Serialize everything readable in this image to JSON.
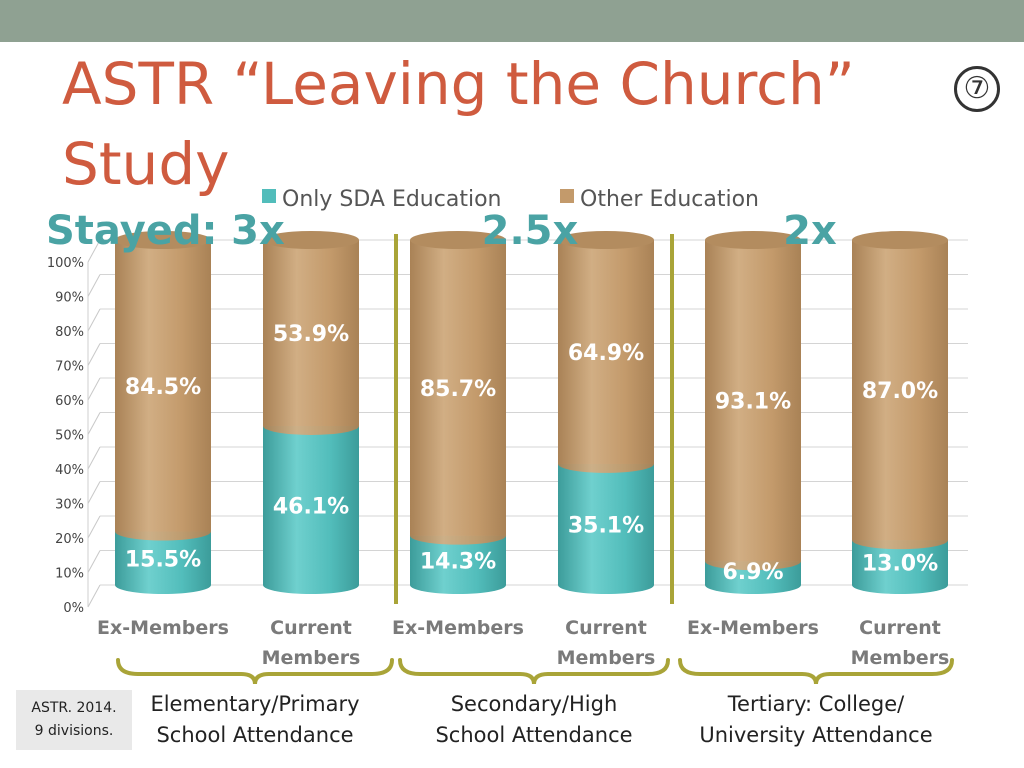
{
  "slide": {
    "title": "ASTR  “Leaving the Church” Study",
    "slide_number": "⑦",
    "source_note_line1": "ASTR. 2014.",
    "source_note_line2": "9 divisions.",
    "stayed_label": "Stayed:",
    "colors": {
      "title": "#cf5b3f",
      "stayed": "#4aa3a4",
      "topbar": "#8fa192",
      "divider": "#a9a438"
    }
  },
  "chart_data": {
    "type": "bar",
    "stacked": true,
    "style": "3d-cylinder",
    "categories": [
      "Ex-Members",
      "Current Members",
      "Ex-Members",
      "Current Members",
      "Ex-Members",
      "Current Members"
    ],
    "series": [
      {
        "name": "Only SDA Education",
        "color": "#52bdbb",
        "values": [
          15.5,
          46.1,
          14.3,
          35.1,
          6.9,
          13.0
        ],
        "labels": [
          "15.5%",
          "46.1%",
          "14.3%",
          "35.1%",
          "6.9%",
          "13.0%"
        ]
      },
      {
        "name": "Other Education",
        "color": "#c39a6b",
        "values": [
          84.5,
          53.9,
          85.7,
          64.9,
          93.1,
          87.0
        ],
        "labels": [
          "84.5%",
          "53.9%",
          "85.7%",
          "64.9%",
          "93.1%",
          "87.0%"
        ]
      }
    ],
    "ylim": [
      0,
      100
    ],
    "yticks": [
      "0%",
      "10%",
      "20%",
      "30%",
      "40%",
      "50%",
      "60%",
      "70%",
      "80%",
      "90%",
      "100%"
    ],
    "grid": true,
    "legend": "top",
    "groups": [
      {
        "label_line1": "Elementary/Primary",
        "label_line2": "School Attendance",
        "stayed_ratio": "3x"
      },
      {
        "label_line1": "Secondary/High",
        "label_line2": "School Attendance",
        "stayed_ratio": "2.5x"
      },
      {
        "label_line1": "Tertiary: College/",
        "label_line2": "University Attendance",
        "stayed_ratio": "2x"
      }
    ]
  }
}
